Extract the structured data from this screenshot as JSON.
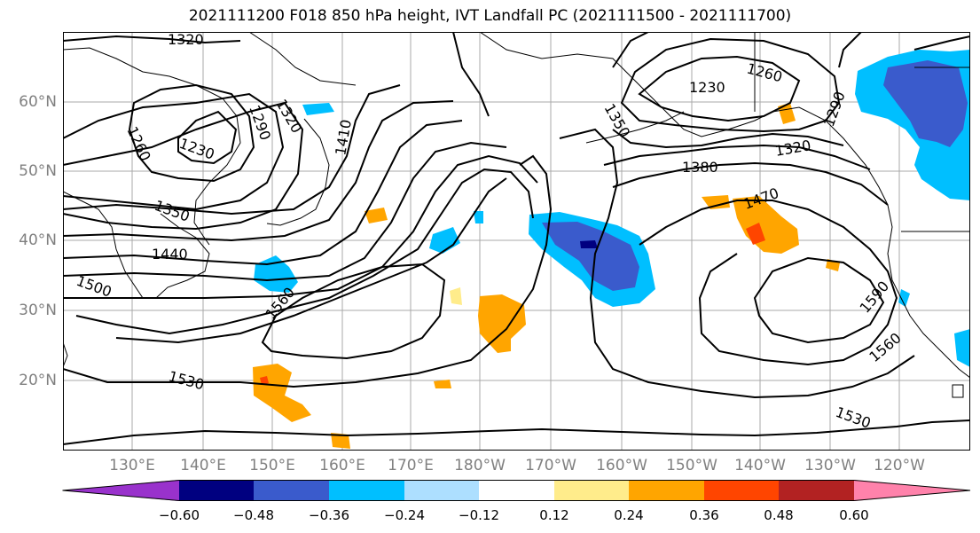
{
  "title": "2021111200 F018 850 hPa height, IVT Landfall PC (2021111500 - 2021111700)",
  "map": {
    "lat_labels": [
      "60°N",
      "50°N",
      "40°N",
      "30°N",
      "20°N"
    ],
    "lon_labels": [
      "130°E",
      "140°E",
      "150°E",
      "160°E",
      "170°E",
      "180°W",
      "170°W",
      "160°W",
      "150°W",
      "140°W",
      "130°W",
      "120°W"
    ],
    "contour_labels": [
      "1320",
      "1290",
      "1320",
      "1260",
      "1230",
      "1410",
      "1350",
      "1440",
      "1500",
      "1560",
      "1530",
      "1260",
      "1230",
      "1350",
      "1290",
      "1320",
      "1380",
      "1470",
      "1590",
      "1560",
      "1530"
    ]
  },
  "colorbar": {
    "colors": [
      "#9932CC",
      "#000080",
      "#3A5BCC",
      "#00BFFF",
      "#ADDFFF",
      "#FFFFFF",
      "#FFEC8B",
      "#FFA500",
      "#FF4500",
      "#B22222",
      "#FF82AB"
    ],
    "tick_labels": [
      "−0.60",
      "−0.48",
      "−0.36",
      "−0.24",
      "−0.12",
      "0.12",
      "0.24",
      "0.36",
      "0.48",
      "0.60"
    ]
  }
}
